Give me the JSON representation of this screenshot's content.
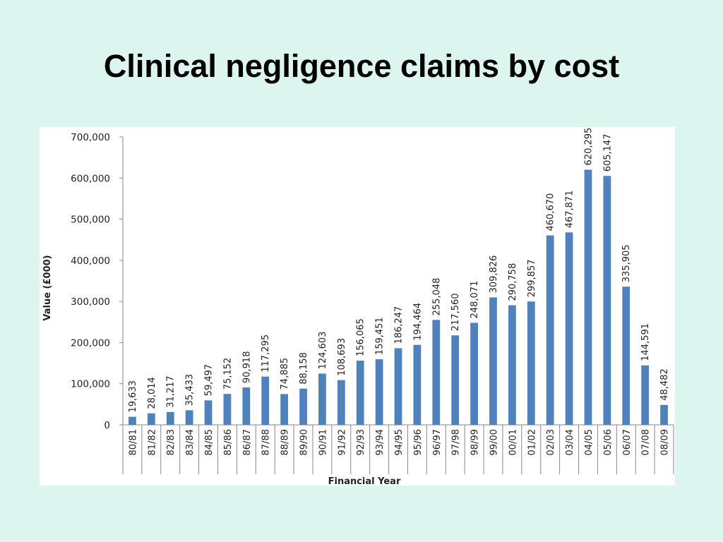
{
  "slide": {
    "title": "Clinical negligence claims by cost"
  },
  "colors": {
    "background": "#dcf5ef",
    "bar": "#4f81bd",
    "panel": "#ffffff"
  },
  "chart_data": {
    "type": "bar",
    "title": "",
    "xlabel": "Financial Year",
    "ylabel": "Value (£000)",
    "ylim": [
      0,
      700000
    ],
    "yticks": [
      0,
      100000,
      200000,
      300000,
      400000,
      500000,
      600000,
      700000
    ],
    "ytick_labels": [
      "0",
      "100,000",
      "200,000",
      "300,000",
      "400,000",
      "500,000",
      "600,000",
      "700,000"
    ],
    "grid": false,
    "legend": "none",
    "categories": [
      "80/81",
      "81/82",
      "82/83",
      "83/84",
      "84/85",
      "85/86",
      "86/87",
      "87/88",
      "88/89",
      "89/90",
      "90/91",
      "91/92",
      "92/93",
      "93/94",
      "94/95",
      "95/96",
      "96/97",
      "97/98",
      "98/99",
      "99/00",
      "00/01",
      "01/02",
      "02/03",
      "03/04",
      "04/05",
      "05/06",
      "06/07",
      "07/08",
      "08/09"
    ],
    "values": [
      19633,
      28014,
      31217,
      35433,
      59497,
      75152,
      90918,
      117295,
      74885,
      88158,
      124603,
      108693,
      156065,
      159451,
      186247,
      194464,
      255048,
      217560,
      248071,
      309826,
      290758,
      299857,
      460670,
      467871,
      620295,
      605147,
      335905,
      144591,
      48482
    ],
    "value_labels": [
      "19,633",
      "28,014",
      "31,217",
      "35,433",
      "59,497",
      "75,152",
      "90,918",
      "117,295",
      "74,885",
      "88,158",
      "124,603",
      "108,693",
      "156,065",
      "159,451",
      "186,247",
      "194,464",
      "255,048",
      "217,560",
      "248,071",
      "309,826",
      "290,758",
      "299,857",
      "460,670",
      "467,871",
      "620,295",
      "605,147",
      "335,905",
      "144,591",
      "48,482"
    ]
  }
}
